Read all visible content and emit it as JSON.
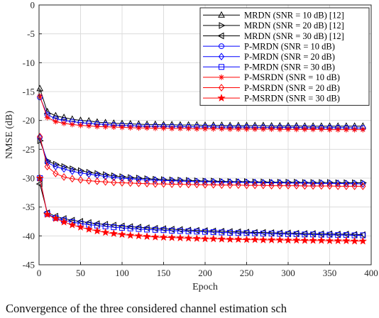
{
  "caption": "Convergence of the three considered channel estimation sch",
  "chart_data": {
    "type": "line",
    "xlabel": "Epoch",
    "ylabel": "NMSE (dB)",
    "xlim": [
      0,
      400
    ],
    "ylim": [
      -45,
      0
    ],
    "xticks": [
      0,
      50,
      100,
      150,
      200,
      250,
      300,
      350,
      400
    ],
    "yticks": [
      0,
      -5,
      -10,
      -15,
      -20,
      -25,
      -30,
      -35,
      -40,
      -45
    ],
    "grid": true,
    "legend_position": "top-right",
    "x": [
      1,
      10,
      20,
      30,
      40,
      50,
      60,
      70,
      80,
      90,
      100,
      110,
      120,
      130,
      140,
      150,
      160,
      170,
      180,
      190,
      200,
      210,
      220,
      230,
      240,
      250,
      260,
      270,
      280,
      290,
      300,
      310,
      320,
      330,
      340,
      350,
      360,
      370,
      380,
      390
    ],
    "series": [
      {
        "name": "MRDN (SNR = 10 dB) [12]",
        "color": "#000000",
        "marker": "triangle-up",
        "values": [
          -14.5,
          -18.5,
          -19.2,
          -19.5,
          -19.8,
          -20.0,
          -20.1,
          -20.3,
          -20.4,
          -20.5,
          -20.55,
          -20.6,
          -20.65,
          -20.7,
          -20.7,
          -20.75,
          -20.75,
          -20.8,
          -20.8,
          -20.8,
          -20.85,
          -20.85,
          -20.85,
          -20.9,
          -20.9,
          -20.9,
          -20.9,
          -20.9,
          -20.95,
          -20.95,
          -20.95,
          -20.95,
          -21.0,
          -21.0,
          -21.0,
          -21.0,
          -21.0,
          -21.0,
          -21.0,
          -21.0
        ]
      },
      {
        "name": "MRDN (SNR = 20 dB) [12]",
        "color": "#000000",
        "marker": "triangle-right",
        "values": [
          -23.5,
          -27.0,
          -27.6,
          -28.0,
          -28.4,
          -28.7,
          -29.0,
          -29.2,
          -29.4,
          -29.6,
          -29.75,
          -29.9,
          -30.0,
          -30.1,
          -30.2,
          -30.25,
          -30.3,
          -30.35,
          -30.4,
          -30.45,
          -30.5,
          -30.5,
          -30.55,
          -30.6,
          -30.6,
          -30.6,
          -30.65,
          -30.65,
          -30.7,
          -30.7,
          -30.7,
          -30.7,
          -30.75,
          -30.75,
          -30.75,
          -30.75,
          -30.8,
          -30.8,
          -30.8,
          -30.8
        ]
      },
      {
        "name": "MRDN (SNR = 30 dB) [12]",
        "color": "#000000",
        "marker": "triangle-left",
        "values": [
          -31.0,
          -36.0,
          -36.6,
          -37.0,
          -37.3,
          -37.5,
          -37.7,
          -37.9,
          -38.0,
          -38.15,
          -38.3,
          -38.4,
          -38.5,
          -38.6,
          -38.7,
          -38.75,
          -38.85,
          -38.9,
          -39.0,
          -39.05,
          -39.1,
          -39.15,
          -39.2,
          -39.25,
          -39.3,
          -39.35,
          -39.4,
          -39.4,
          -39.45,
          -39.5,
          -39.5,
          -39.55,
          -39.6,
          -39.6,
          -39.65,
          -39.65,
          -39.7,
          -39.7,
          -39.75,
          -39.8
        ]
      },
      {
        "name": "P-MRDN (SNR = 10 dB)",
        "color": "#0000ff",
        "marker": "circle",
        "values": [
          -16.0,
          -19.0,
          -19.7,
          -20.0,
          -20.2,
          -20.4,
          -20.5,
          -20.6,
          -20.7,
          -20.8,
          -20.85,
          -20.9,
          -20.95,
          -21.0,
          -21.0,
          -21.0,
          -21.05,
          -21.05,
          -21.1,
          -21.1,
          -21.1,
          -21.1,
          -21.15,
          -21.15,
          -21.15,
          -21.15,
          -21.2,
          -21.2,
          -21.2,
          -21.2,
          -21.2,
          -21.2,
          -21.25,
          -21.25,
          -21.25,
          -21.25,
          -21.25,
          -21.25,
          -21.3,
          -21.3
        ]
      },
      {
        "name": "P-MRDN (SNR = 20 dB)",
        "color": "#0000ff",
        "marker": "diamond",
        "values": [
          -23.0,
          -27.3,
          -28.0,
          -28.4,
          -28.8,
          -29.1,
          -29.3,
          -29.5,
          -29.7,
          -29.85,
          -30.0,
          -30.1,
          -30.2,
          -30.3,
          -30.35,
          -30.4,
          -30.45,
          -30.5,
          -30.55,
          -30.6,
          -30.6,
          -30.65,
          -30.7,
          -30.7,
          -30.7,
          -30.75,
          -30.75,
          -30.8,
          -30.8,
          -30.8,
          -30.85,
          -30.85,
          -30.85,
          -30.9,
          -30.9,
          -30.9,
          -30.9,
          -30.95,
          -30.95,
          -31.0
        ]
      },
      {
        "name": "P-MRDN (SNR = 30 dB)",
        "color": "#0000ff",
        "marker": "square",
        "values": [
          -30.0,
          -36.2,
          -36.9,
          -37.3,
          -37.6,
          -37.85,
          -38.05,
          -38.2,
          -38.35,
          -38.5,
          -38.6,
          -38.7,
          -38.8,
          -38.9,
          -38.95,
          -39.0,
          -39.1,
          -39.15,
          -39.2,
          -39.25,
          -39.3,
          -39.35,
          -39.4,
          -39.45,
          -39.5,
          -39.5,
          -39.55,
          -39.6,
          -39.6,
          -39.65,
          -39.7,
          -39.7,
          -39.75,
          -39.75,
          -39.8,
          -39.8,
          -39.85,
          -39.85,
          -39.9,
          -39.9
        ]
      },
      {
        "name": "P-MSRDN (SNR = 10 dB)",
        "color": "#ff0000",
        "marker": "asterisk",
        "values": [
          -15.8,
          -19.5,
          -20.2,
          -20.5,
          -20.7,
          -20.85,
          -20.95,
          -21.05,
          -21.1,
          -21.15,
          -21.2,
          -21.25,
          -21.3,
          -21.3,
          -21.35,
          -21.35,
          -21.4,
          -21.4,
          -21.4,
          -21.45,
          -21.45,
          -21.45,
          -21.45,
          -21.5,
          -21.5,
          -21.5,
          -21.5,
          -21.5,
          -21.5,
          -21.55,
          -21.55,
          -21.55,
          -21.55,
          -21.55,
          -21.55,
          -21.6,
          -21.6,
          -21.6,
          -21.6,
          -21.6
        ]
      },
      {
        "name": "P-MSRDN (SNR = 20 dB)",
        "color": "#ff0000",
        "marker": "diamond",
        "values": [
          -22.8,
          -28.0,
          -29.2,
          -29.8,
          -30.1,
          -30.3,
          -30.45,
          -30.55,
          -30.65,
          -30.75,
          -30.8,
          -30.85,
          -30.9,
          -30.95,
          -31.0,
          -31.0,
          -31.05,
          -31.05,
          -31.1,
          -31.1,
          -31.15,
          -31.15,
          -31.2,
          -31.2,
          -31.2,
          -31.25,
          -31.25,
          -31.25,
          -31.3,
          -31.3,
          -31.3,
          -31.3,
          -31.35,
          -31.35,
          -31.35,
          -31.35,
          -31.4,
          -31.4,
          -31.4,
          -31.4
        ]
      },
      {
        "name": "P-MSRDN (SNR = 30 dB)",
        "color": "#ff0000",
        "marker": "star",
        "values": [
          -30.0,
          -36.3,
          -37.0,
          -37.6,
          -38.1,
          -38.5,
          -38.85,
          -39.15,
          -39.4,
          -39.6,
          -39.75,
          -39.9,
          -40.0,
          -40.1,
          -40.2,
          -40.25,
          -40.3,
          -40.35,
          -40.4,
          -40.45,
          -40.5,
          -40.5,
          -40.55,
          -40.6,
          -40.6,
          -40.65,
          -40.65,
          -40.7,
          -40.7,
          -40.7,
          -40.75,
          -40.75,
          -40.8,
          -40.8,
          -40.8,
          -40.85,
          -40.85,
          -40.85,
          -40.9,
          -40.9
        ]
      }
    ]
  }
}
